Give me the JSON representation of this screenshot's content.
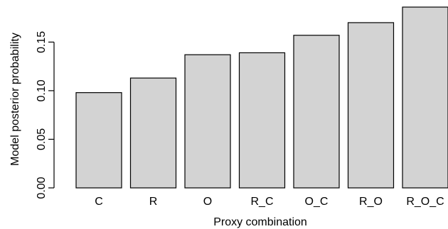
{
  "chart_data": {
    "type": "bar",
    "title": "",
    "xlabel": "Proxy combination",
    "ylabel": "Model posterior probability",
    "categories": [
      "C",
      "R",
      "O",
      "R_C",
      "O_C",
      "R_O",
      "R_O_C"
    ],
    "values": [
      0.098,
      0.113,
      0.137,
      0.139,
      0.157,
      0.17,
      0.186
    ],
    "ylim": [
      0,
      0.186
    ],
    "yticks": [
      "0.00",
      "0.05",
      "0.10",
      "0.15"
    ],
    "ytick_values": [
      0.0,
      0.05,
      0.1,
      0.15
    ],
    "grid": false,
    "legend": "none",
    "bar_color": "#d3d3d3",
    "edge_color": "#000000"
  }
}
